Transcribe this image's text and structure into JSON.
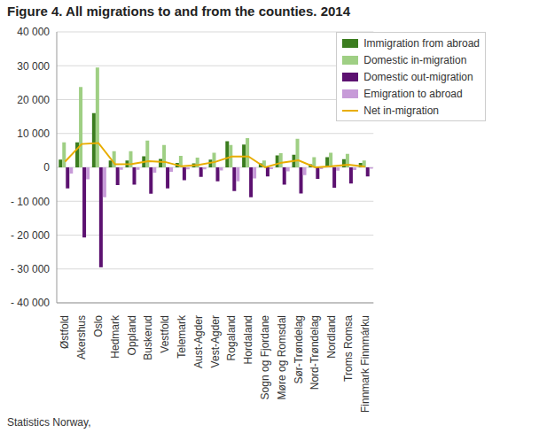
{
  "chart_data": {
    "type": "bar",
    "title": "Figure 4. All migrations to and from the counties. 2014",
    "source": "Statistics Norway,",
    "categories": [
      "Østfold",
      "Akershus",
      "Oslo",
      "Hedmark",
      "Oppland",
      "Buskerud",
      "Vestfold",
      "Telemark",
      "Aust-Agder",
      "Vest-Agder",
      "Rogaland",
      "Hordaland",
      "Sogn og Fjordane",
      "Møre og Romsdal",
      "Sør-Trøndelag",
      "Nord-Trøndelag",
      "Nordland",
      "Troms Romsa",
      "Finnmark Finnmárku"
    ],
    "series": [
      {
        "name": "Immigration from abroad",
        "color": "#3b7d1f",
        "type": "bar",
        "values": [
          2300,
          7400,
          16000,
          2000,
          2000,
          3300,
          2500,
          1300,
          1200,
          2300,
          7700,
          6700,
          1200,
          3500,
          3700,
          900,
          3000,
          2400,
          1300
        ]
      },
      {
        "name": "Domestic in-migration",
        "color": "#9fcf84",
        "type": "bar",
        "values": [
          7400,
          23700,
          29500,
          4800,
          4800,
          7900,
          6600,
          3400,
          2900,
          4300,
          6600,
          8600,
          2000,
          4200,
          8400,
          3000,
          4300,
          4000,
          2000
        ]
      },
      {
        "name": "Domestic out-migration",
        "color": "#5c1170",
        "type": "bar",
        "values": [
          -6200,
          -20700,
          -29500,
          -5200,
          -5100,
          -7800,
          -6200,
          -3800,
          -2800,
          -4100,
          -7000,
          -8800,
          -2700,
          -5100,
          -7700,
          -3400,
          -6000,
          -4800,
          -2700
        ]
      },
      {
        "name": "Emigration to abroad",
        "color": "#c79bd8",
        "type": "bar",
        "values": [
          -1800,
          -3500,
          -8800,
          -700,
          -700,
          -1600,
          -1300,
          -600,
          -600,
          -900,
          -4100,
          -3300,
          -500,
          -1200,
          -2300,
          -500,
          -1000,
          -800,
          -400
        ]
      },
      {
        "name": "Net in-migration",
        "color": "#e8ad00",
        "type": "line",
        "values": [
          1700,
          6900,
          7200,
          900,
          1000,
          1800,
          1600,
          300,
          700,
          1600,
          3200,
          3200,
          0,
          1400,
          2100,
          0,
          300,
          800,
          200
        ]
      }
    ],
    "ylim": [
      -40000,
      40000
    ],
    "yticks": [
      {
        "value": -40000,
        "label": "- 40 000"
      },
      {
        "value": -30000,
        "label": "- 30 000"
      },
      {
        "value": -20000,
        "label": "- 20 000"
      },
      {
        "value": -10000,
        "label": "- 10 000"
      },
      0,
      {
        "value": 10000,
        "label": "10 000"
      },
      {
        "value": 20000,
        "label": "20 000"
      },
      {
        "value": 30000,
        "label": "30 000"
      },
      {
        "value": 40000,
        "label": "40 000"
      }
    ],
    "grid": true,
    "legend": "top-right"
  }
}
